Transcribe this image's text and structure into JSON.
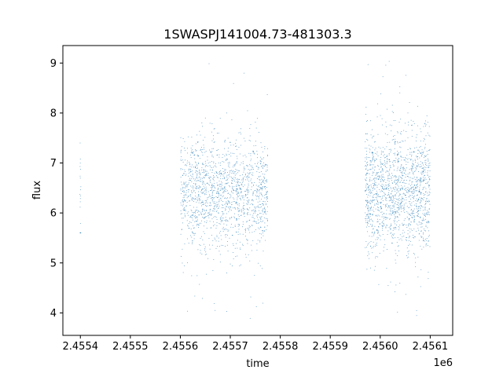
{
  "chart_data": {
    "type": "scatter",
    "title": "1SWASPJ141004.73-481303.3",
    "xlabel": "time",
    "ylabel": "flux",
    "x_offset_label": "1e6",
    "xlim": [
      2455365,
      2456145
    ],
    "ylim": [
      3.55,
      9.35
    ],
    "x_ticks": [
      2455400,
      2455500,
      2455600,
      2455700,
      2455800,
      2455900,
      2456000,
      2456100
    ],
    "x_tick_labels": [
      "2.4554",
      "2.4555",
      "2.4556",
      "2.4557",
      "2.4558",
      "2.4559",
      "2.4560",
      "2.4561"
    ],
    "y_ticks": [
      4,
      5,
      6,
      7,
      8,
      9
    ],
    "y_tick_labels": [
      "4",
      "5",
      "6",
      "7",
      "8",
      "9"
    ],
    "grid": false,
    "legend": "none",
    "marker_color": "#1f77b4",
    "clusters": [
      {
        "x_start": 2455399,
        "x_end": 2455401,
        "y_median": 6.5,
        "y_spread": 0.9,
        "y_min": 5.6,
        "y_max": 7.4,
        "density": "sparse"
      },
      {
        "x_start": 2455601,
        "x_end": 2455775,
        "y_median": 6.4,
        "y_spread": 0.55,
        "y_min": 3.8,
        "y_max": 9.05,
        "density": "dense"
      },
      {
        "x_start": 2455970,
        "x_end": 2456100,
        "y_median": 6.4,
        "y_spread": 0.6,
        "y_min": 3.8,
        "y_max": 9.1,
        "density": "dense"
      }
    ]
  }
}
